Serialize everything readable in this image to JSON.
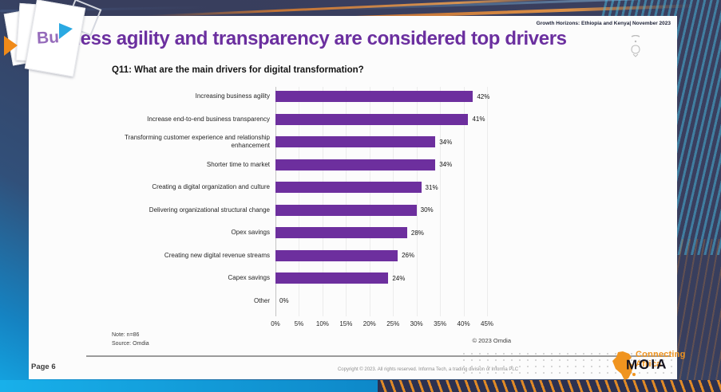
{
  "header": {
    "report_label": "Growth Horizons: Ethiopia and Kenya| November 2023",
    "title": "Business agility and transparency are considered top drivers",
    "title_fragment": "Bu"
  },
  "chart_data": {
    "type": "bar",
    "orientation": "horizontal",
    "title": "Q11: What are the main drivers for digital transformation?",
    "categories": [
      "Increasing business agility",
      "Increase end-to-end business transparency",
      "Transforming customer experience and relationship enhancement",
      "Shorter time to market",
      "Creating a digital organization and culture",
      "Delivering organizational structural change",
      "Opex savings",
      "Creating new digital revenue streams",
      "Capex savings",
      "Other"
    ],
    "values": [
      42,
      41,
      34,
      34,
      31,
      30,
      28,
      26,
      24,
      0
    ],
    "value_labels": [
      "42%",
      "41%",
      "34%",
      "34%",
      "31%",
      "30%",
      "28%",
      "26%",
      "24%",
      "0%"
    ],
    "x_ticks": [
      "0%",
      "5%",
      "10%",
      "15%",
      "20%",
      "25%",
      "30%",
      "35%",
      "40%",
      "45%"
    ],
    "xlim": [
      0,
      45
    ],
    "grid": true,
    "legend": "none",
    "bar_color": "#6d2f9e",
    "note": "Note: n=86",
    "source": "Source: Omdia",
    "copyright": "© 2023 Omdia"
  },
  "footer": {
    "page_label": "Page 6",
    "copyright": "Copyright © 2023. All rights reserved. Informa Tech, a trading division of Informa PLC",
    "logo": {
      "line1": "Connecting",
      "line2": "Africa",
      "overlay": "MOIA"
    }
  },
  "colors": {
    "title_purple": "#6b2f9f",
    "bar_purple": "#6d2f9e",
    "logo_orange": "#f0941f",
    "background_navy": "#3a3f5e",
    "background_blue": "#14a6e3"
  }
}
